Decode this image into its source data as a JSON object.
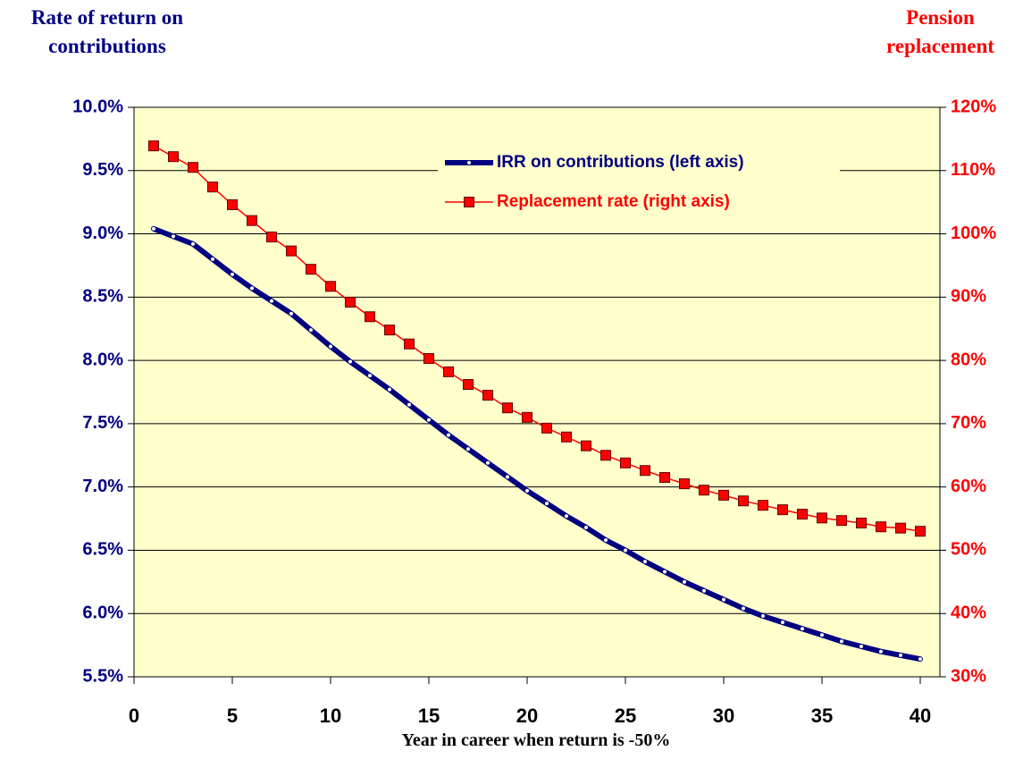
{
  "chart_data": {
    "type": "line",
    "y_title": "Rate of return on contributions",
    "y2_title": "Pension replacement",
    "x_title": "Year in career when return is -50%",
    "x": [
      1,
      2,
      3,
      4,
      5,
      6,
      7,
      8,
      9,
      10,
      11,
      12,
      13,
      14,
      15,
      16,
      17,
      18,
      19,
      20,
      21,
      22,
      23,
      24,
      25,
      26,
      27,
      28,
      29,
      30,
      31,
      32,
      33,
      34,
      35,
      36,
      37,
      38,
      39,
      40
    ],
    "series": [
      {
        "name": "IRR on contributions (left axis)",
        "color": "#000080",
        "axis": "y",
        "values": [
          9.04,
          8.98,
          8.92,
          8.8,
          8.68,
          8.57,
          8.47,
          8.37,
          8.24,
          8.11,
          7.99,
          7.88,
          7.77,
          7.65,
          7.53,
          7.41,
          7.3,
          7.19,
          7.08,
          6.97,
          6.87,
          6.77,
          6.68,
          6.58,
          6.5,
          6.41,
          6.33,
          6.25,
          6.18,
          6.11,
          6.04,
          5.98,
          5.93,
          5.88,
          5.83,
          5.78,
          5.74,
          5.7,
          5.67,
          5.64
        ]
      },
      {
        "name": "Replacement rate (right axis)",
        "color": "#ff0000",
        "axis": "y2",
        "values": [
          113.9,
          112.2,
          110.5,
          107.4,
          104.6,
          102.1,
          99.5,
          97.3,
          94.4,
          91.7,
          89.2,
          86.9,
          84.8,
          82.6,
          80.3,
          78.2,
          76.2,
          74.5,
          72.5,
          71.0,
          69.3,
          67.9,
          66.5,
          65.0,
          63.8,
          62.6,
          61.5,
          60.5,
          59.5,
          58.7,
          57.8,
          57.1,
          56.4,
          55.7,
          55.1,
          54.7,
          54.3,
          53.7,
          53.5,
          53.0
        ]
      }
    ],
    "xlim": [
      0,
      41
    ],
    "xticks": [
      0,
      5,
      10,
      15,
      20,
      25,
      30,
      35,
      40
    ],
    "ylim": [
      5.5,
      10
    ],
    "yticks": [
      {
        "value": 5.5,
        "label": "5.5%"
      },
      {
        "value": 6,
        "label": "6.0%"
      },
      {
        "value": 6.5,
        "label": "6.5%"
      },
      {
        "value": 7,
        "label": "7.0%"
      },
      {
        "value": 7.5,
        "label": "7.5%"
      },
      {
        "value": 8,
        "label": "8.0%"
      },
      {
        "value": 8.5,
        "label": "8.5%"
      },
      {
        "value": 9,
        "label": "9.0%"
      },
      {
        "value": 9.5,
        "label": "9.5%"
      },
      {
        "value": 10,
        "label": "10.0%"
      }
    ],
    "y2lim": [
      30,
      120
    ],
    "y2ticks": [
      {
        "value": 30,
        "label": "30%"
      },
      {
        "value": 40,
        "label": "40%"
      },
      {
        "value": 50,
        "label": "50%"
      },
      {
        "value": 60,
        "label": "60%"
      },
      {
        "value": 70,
        "label": "70%"
      },
      {
        "value": 80,
        "label": "80%"
      },
      {
        "value": 90,
        "label": "90%"
      },
      {
        "value": 100,
        "label": "100%"
      },
      {
        "value": 110,
        "label": "110%"
      },
      {
        "value": 120,
        "label": "120%"
      }
    ],
    "grid": true,
    "legend": "upper right",
    "background": "#ffffcc"
  }
}
